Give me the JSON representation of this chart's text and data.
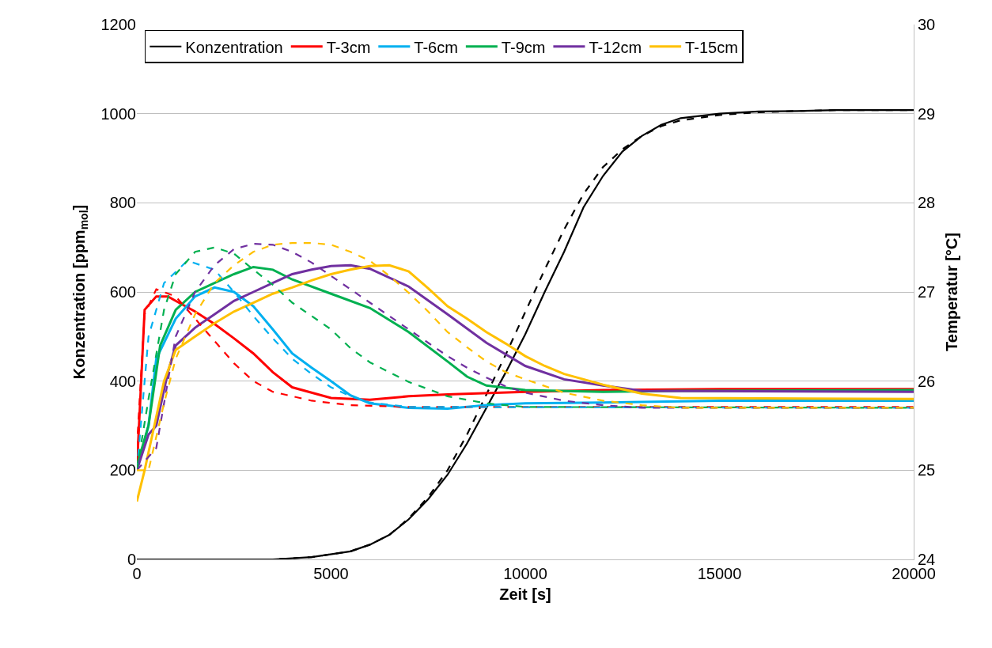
{
  "chart_data": {
    "type": "line",
    "xlabel": "Zeit [s]",
    "ylabel": "Konzentration [ppm$_{mol}$]",
    "y2label": "Temperatur [°C]",
    "xlim": [
      0,
      20000
    ],
    "xticks": [
      0,
      5000,
      10000,
      15000,
      20000
    ],
    "ylim": [
      0,
      1200
    ],
    "yticks": [
      0,
      200,
      400,
      600,
      800,
      1000,
      1200
    ],
    "y2lim": [
      24,
      30
    ],
    "y2ticks": [
      24,
      25,
      26,
      27,
      28,
      29,
      30
    ],
    "grid": "y",
    "legend": "top left",
    "marker": "none",
    "series": [
      {
        "name": "Konzentration",
        "color": "#000000",
        "line_style": "solid",
        "x": [
          0,
          2000,
          3500,
          4500,
          5500,
          6000,
          6500,
          7000,
          7500,
          8000,
          8500,
          9000,
          9500,
          10000,
          10500,
          11000,
          11500,
          12000,
          12500,
          13000,
          13500,
          14000,
          15000,
          16000,
          17000,
          18000,
          20000
        ],
        "values": [
          0,
          0,
          0,
          5,
          18,
          33,
          55,
          90,
          135,
          190,
          260,
          340,
          420,
          505,
          600,
          690,
          790,
          860,
          915,
          950,
          975,
          990,
          1000,
          1005,
          1006,
          1008,
          1008
        ]
      },
      {
        "name": "T-3cm",
        "color": "#ff0000",
        "axis": "y2",
        "line_style": "solid",
        "x": [
          0,
          200,
          500,
          800,
          1000,
          1500,
          2000,
          2500,
          3000,
          3500,
          4000,
          5000,
          6000,
          7000,
          8000,
          10000,
          12000,
          15000,
          20000
        ],
        "values": [
          25.0,
          26.8,
          26.95,
          26.95,
          26.9,
          26.78,
          26.64,
          26.48,
          26.31,
          26.1,
          25.93,
          25.81,
          25.79,
          25.83,
          25.85,
          25.88,
          25.9,
          25.91,
          25.91
        ]
      },
      {
        "name": "T-6cm",
        "color": "#00b0f0",
        "axis": "y2",
        "line_style": "solid",
        "x": [
          0,
          300,
          500,
          1000,
          1500,
          2000,
          2500,
          3000,
          3500,
          4000,
          4500,
          5000,
          5500,
          6000,
          7000,
          8000,
          9000,
          10000,
          12000,
          15000,
          20000
        ],
        "values": [
          25.0,
          25.5,
          26.25,
          26.7,
          26.95,
          27.05,
          27.0,
          26.84,
          26.58,
          26.31,
          26.15,
          26.0,
          25.84,
          25.75,
          25.7,
          25.69,
          25.73,
          25.75,
          25.76,
          25.78,
          25.78
        ]
      },
      {
        "name": "T-9cm",
        "color": "#00b050",
        "axis": "y2",
        "line_style": "solid",
        "x": [
          0,
          300,
          600,
          1000,
          1500,
          2000,
          2500,
          3000,
          3500,
          4000,
          5000,
          6000,
          7000,
          8000,
          8500,
          9000,
          10000,
          12000,
          14000,
          20000
        ],
        "values": [
          25.05,
          25.5,
          26.4,
          26.8,
          27.0,
          27.1,
          27.2,
          27.28,
          27.25,
          27.14,
          26.98,
          26.82,
          26.55,
          26.22,
          26.05,
          25.95,
          25.9,
          25.88,
          25.89,
          25.9
        ]
      },
      {
        "name": "T-12cm",
        "color": "#7030a0",
        "axis": "y2",
        "line_style": "solid",
        "x": [
          0,
          300,
          500,
          800,
          1000,
          1500,
          2000,
          2500,
          3000,
          3500,
          4000,
          4500,
          5000,
          5500,
          6000,
          7000,
          8000,
          9000,
          10000,
          11000,
          12000,
          13000,
          20000
        ],
        "values": [
          25.0,
          25.4,
          25.5,
          26.1,
          26.4,
          26.6,
          26.75,
          26.9,
          27.0,
          27.1,
          27.2,
          27.25,
          27.29,
          27.3,
          27.26,
          27.06,
          26.75,
          26.43,
          26.17,
          26.02,
          25.95,
          25.89,
          25.88
        ]
      },
      {
        "name": "T-15cm",
        "color": "#ffc000",
        "axis": "y2",
        "line_style": "solid",
        "x": [
          0,
          200,
          400,
          700,
          1000,
          1500,
          2000,
          2500,
          3000,
          3500,
          4000,
          4500,
          5000,
          5500,
          6000,
          6500,
          7000,
          7500,
          8000,
          8500,
          9000,
          9500,
          10000,
          10500,
          11000,
          12000,
          13000,
          14000,
          20000
        ],
        "values": [
          24.65,
          25.0,
          25.4,
          26.0,
          26.35,
          26.5,
          26.65,
          26.78,
          26.88,
          26.98,
          27.05,
          27.13,
          27.2,
          27.25,
          27.29,
          27.3,
          27.23,
          27.04,
          26.84,
          26.7,
          26.55,
          26.42,
          26.28,
          26.17,
          26.08,
          25.96,
          25.86,
          25.81,
          25.8
        ]
      },
      {
        "color": "#000000",
        "line_style": "dashed",
        "x": [
          0,
          2000,
          3500,
          4500,
          5500,
          6000,
          6500,
          7000,
          7500,
          8000,
          8500,
          9000,
          9500,
          10000,
          10500,
          11000,
          11500,
          12000,
          12500,
          13000,
          13500,
          14000,
          15000,
          16000,
          17000,
          18000,
          20000
        ],
        "values": [
          0,
          0,
          0,
          5,
          18,
          33,
          55,
          92,
          140,
          200,
          280,
          370,
          460,
          555,
          650,
          740,
          820,
          880,
          920,
          950,
          972,
          985,
          997,
          1003,
          1006,
          1008,
          1008
        ]
      },
      {
        "color": "#ff0000",
        "axis": "y2",
        "line_style": "dashed",
        "x": [
          0,
          200,
          500,
          1000,
          1500,
          2000,
          2500,
          3000,
          3500,
          4500,
          5500,
          7000,
          20000
        ],
        "values": [
          25.25,
          26.75,
          27.03,
          26.95,
          26.7,
          26.45,
          26.2,
          26.0,
          25.88,
          25.78,
          25.73,
          25.71,
          25.71
        ]
      },
      {
        "color": "#00b0f0",
        "axis": "y2",
        "line_style": "dashed",
        "x": [
          0,
          300,
          700,
          1300,
          2000,
          2500,
          3000,
          3500,
          4000,
          4500,
          5000,
          5500,
          6000,
          7000,
          20000
        ],
        "values": [
          25.0,
          26.5,
          27.1,
          27.35,
          27.25,
          27.0,
          26.73,
          26.48,
          26.25,
          26.08,
          25.93,
          25.83,
          25.76,
          25.71,
          25.7
        ]
      },
      {
        "color": "#00b050",
        "axis": "y2",
        "line_style": "dashed",
        "x": [
          0,
          300,
          700,
          1000,
          1500,
          2000,
          2500,
          3000,
          3500,
          4000,
          4500,
          5000,
          5500,
          6000,
          7000,
          8000,
          9000,
          10000,
          20000
        ],
        "values": [
          25.0,
          25.8,
          26.8,
          27.2,
          27.45,
          27.5,
          27.43,
          27.25,
          27.08,
          26.88,
          26.73,
          26.58,
          26.37,
          26.21,
          25.99,
          25.83,
          25.75,
          25.71,
          25.7
        ]
      },
      {
        "color": "#7030a0",
        "axis": "y2",
        "line_style": "dashed",
        "x": [
          0,
          500,
          800,
          1000,
          1500,
          2000,
          2500,
          3000,
          3500,
          4000,
          4500,
          5000,
          5500,
          6000,
          6500,
          7000,
          7500,
          8000,
          8500,
          9000,
          9500,
          10000,
          11000,
          12000,
          13000,
          20000
        ],
        "values": [
          25.0,
          25.25,
          26.0,
          26.5,
          27.0,
          27.3,
          27.48,
          27.54,
          27.53,
          27.45,
          27.33,
          27.18,
          27.03,
          26.88,
          26.73,
          26.58,
          26.43,
          26.28,
          26.15,
          26.04,
          25.94,
          25.87,
          25.78,
          25.73,
          25.7,
          25.7
        ]
      },
      {
        "color": "#ffc000",
        "axis": "y2",
        "line_style": "dashed",
        "x": [
          0,
          300,
          700,
          1000,
          1500,
          2000,
          2500,
          3000,
          3500,
          4000,
          4500,
          5000,
          5500,
          6000,
          6500,
          7000,
          7500,
          8000,
          8500,
          9000,
          9500,
          10000,
          11000,
          12000,
          13000,
          14000,
          20000
        ],
        "values": [
          25.0,
          25.0,
          25.75,
          26.25,
          26.75,
          27.1,
          27.3,
          27.45,
          27.53,
          27.55,
          27.55,
          27.53,
          27.45,
          27.35,
          27.18,
          26.99,
          26.78,
          26.55,
          26.38,
          26.22,
          26.1,
          26.02,
          25.87,
          25.78,
          25.73,
          25.7,
          25.7
        ]
      }
    ]
  }
}
